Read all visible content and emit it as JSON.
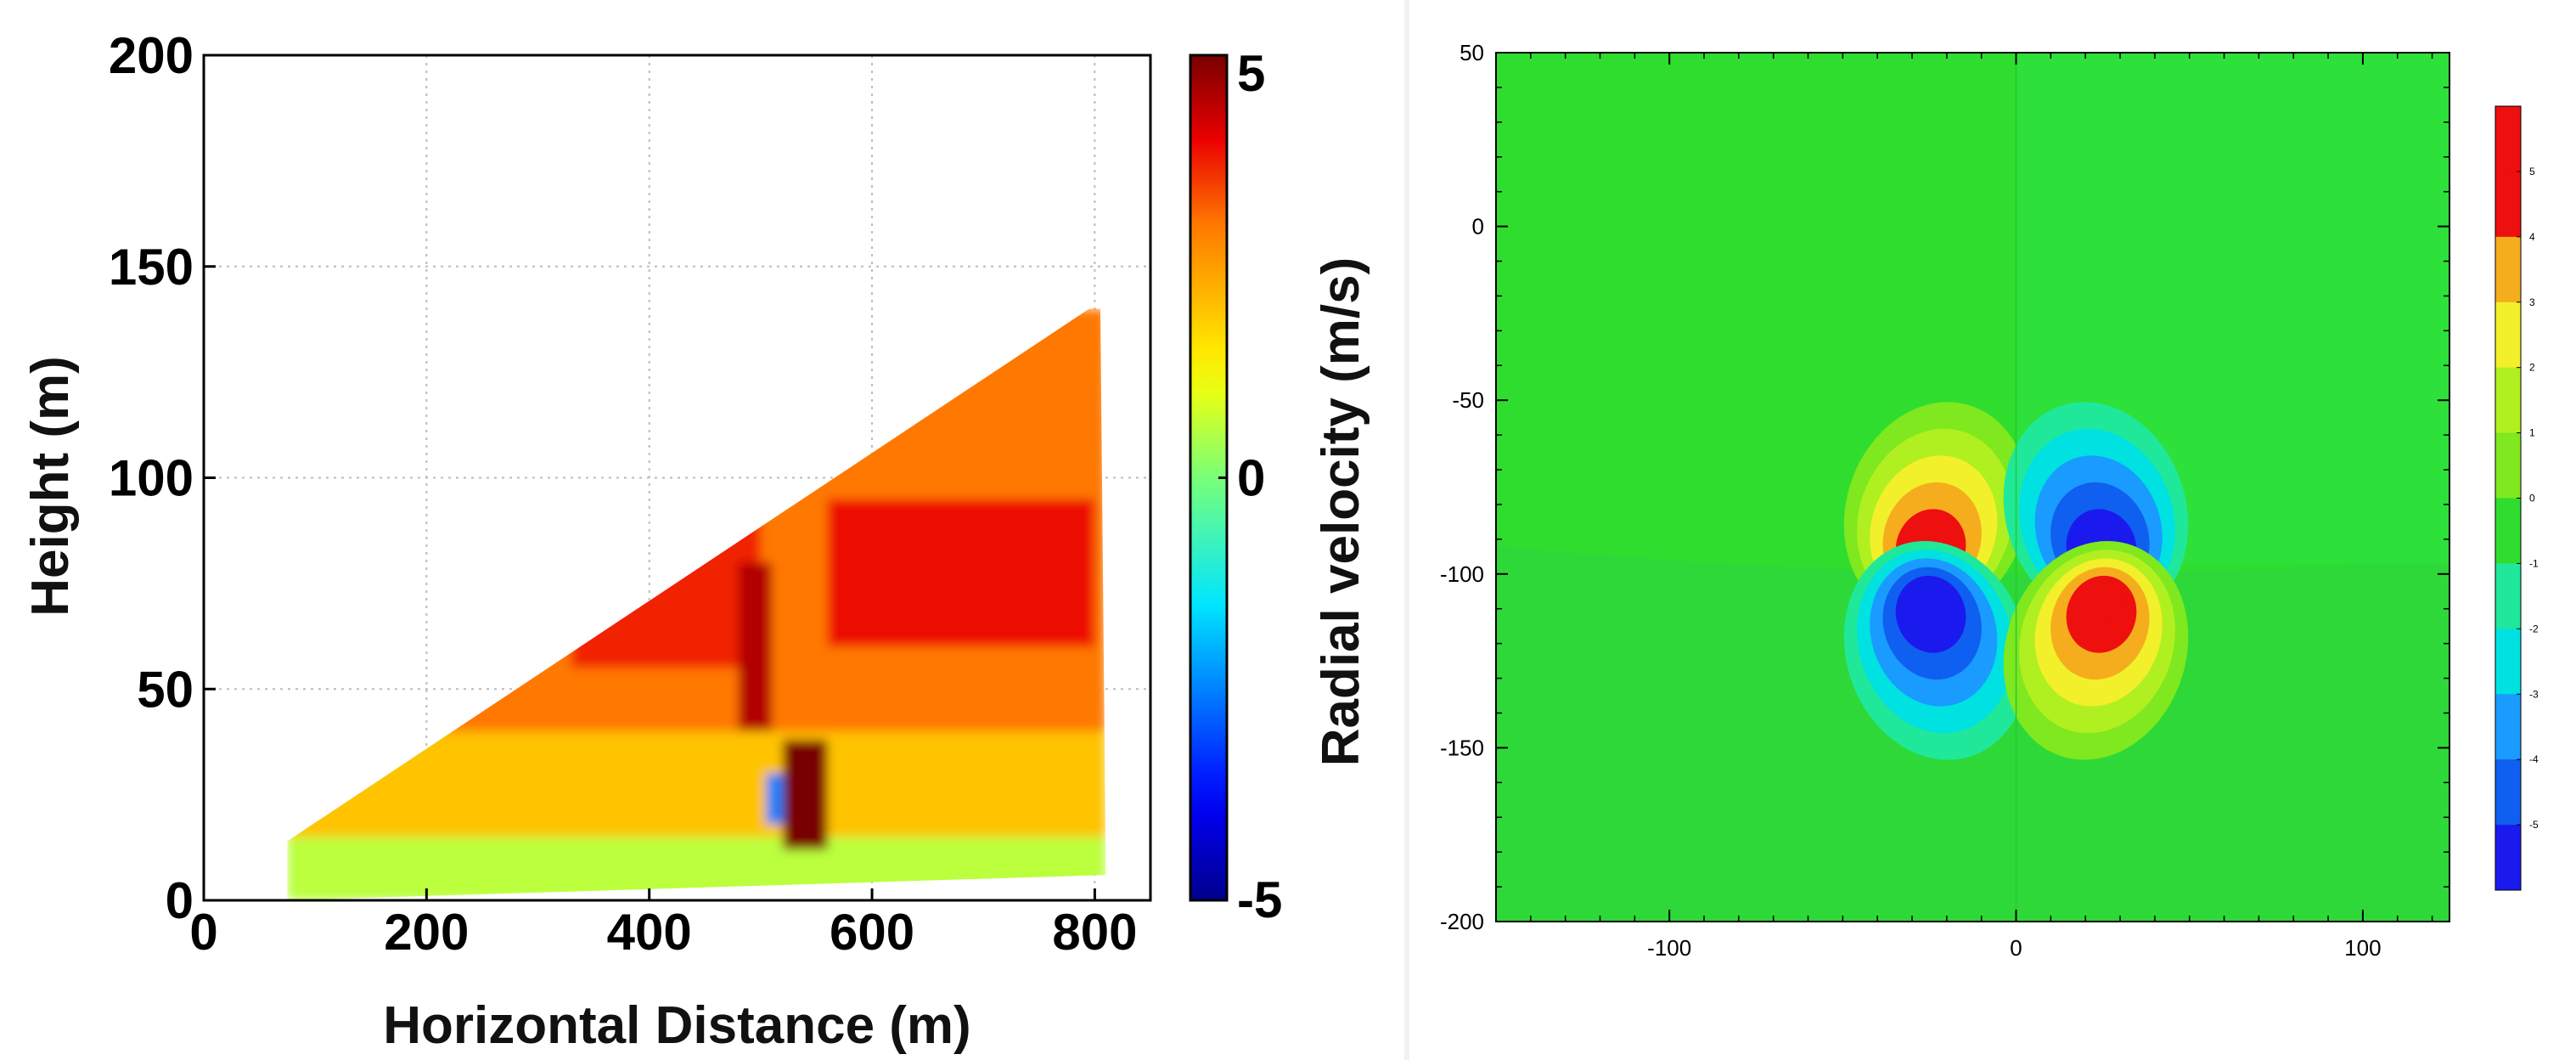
{
  "chart_data": [
    {
      "type": "heatmap",
      "title": "",
      "xlabel": "Horizontal Distance (m)",
      "ylabel": "Height (m)",
      "xlim": [
        0,
        850
      ],
      "ylim": [
        0,
        200
      ],
      "x_ticks": [
        "0",
        "200",
        "400",
        "600",
        "800"
      ],
      "y_ticks": [
        "0",
        "50",
        "100",
        "150",
        "200"
      ],
      "grid": true,
      "colorbar": {
        "label": "Radial velocity (m/s)",
        "min": -5,
        "max": 5,
        "ticks": [
          "-5",
          "0",
          "5"
        ]
      },
      "scan_outline": [
        [
          75,
          0
        ],
        [
          75,
          14
        ],
        [
          795,
          140
        ],
        [
          805,
          140
        ],
        [
          810,
          6
        ]
      ],
      "regions": [
        {
          "name": "near-surface layer",
          "x_range": [
            75,
            810
          ],
          "y_range": [
            0,
            15
          ],
          "value": 0.6
        },
        {
          "name": "lower layer",
          "x_range": [
            75,
            810
          ],
          "y_range": [
            15,
            40
          ],
          "value": 2.0
        },
        {
          "name": "upper layer",
          "x_range": [
            200,
            810
          ],
          "y_range": [
            40,
            140
          ],
          "value": 3.0
        },
        {
          "name": "high region left",
          "x_range": [
            330,
            500
          ],
          "y_range": [
            55,
            90
          ],
          "value": 3.7
        },
        {
          "name": "high region right",
          "x_range": [
            560,
            800
          ],
          "y_range": [
            60,
            95
          ],
          "value": 3.9
        },
        {
          "name": "dark red core",
          "x_range": [
            520,
            560
          ],
          "y_range": [
            12,
            38
          ],
          "value": 5
        },
        {
          "name": "blue patch",
          "x_range": [
            505,
            520
          ],
          "y_range": [
            18,
            30
          ],
          "value": -2.5
        },
        {
          "name": "red vertical band",
          "x_range": [
            480,
            510
          ],
          "y_range": [
            40,
            80
          ],
          "value": 4.5
        }
      ]
    },
    {
      "type": "heatmap",
      "title": "",
      "xlabel": "",
      "ylabel": "",
      "xlim": [
        -150,
        125
      ],
      "ylim": [
        -200,
        50
      ],
      "x_ticks": [
        "-100",
        "0",
        "100"
      ],
      "y_ticks": [
        "-200",
        "-150",
        "-100",
        "-50",
        "0",
        "50"
      ],
      "grid": false,
      "colorbar": {
        "min": -5.5,
        "max": 5.5,
        "ticks": [
          "5",
          "4",
          "3",
          "2",
          "1",
          "0",
          "-1",
          "-2",
          "-3",
          "-4",
          "-5"
        ],
        "levels": [
          5,
          4,
          3,
          2,
          1,
          0,
          -1,
          -2,
          -3,
          -4,
          -5
        ]
      },
      "background_value": 0.3,
      "vortex_pair": [
        {
          "center": [
            -25,
            -102
          ],
          "upper_lobe_value": 5,
          "lower_lobe_value": -5
        },
        {
          "center": [
            25,
            -102
          ],
          "upper_lobe_value": -5,
          "lower_lobe_value": 5
        }
      ]
    }
  ]
}
